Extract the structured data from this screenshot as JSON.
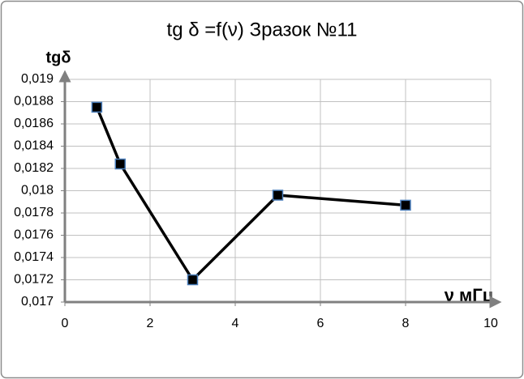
{
  "chart_data": {
    "type": "line",
    "title": "tg δ =f(ν)  Зразок №11",
    "y_label": "tgδ",
    "x_label": "ν мГц",
    "x": [
      0.75,
      1.3,
      3,
      5,
      8
    ],
    "series": [
      {
        "color": "#000000",
        "marker_edge_color": "#4a7ebb",
        "values": [
          0.01875,
          0.01824,
          0.0172,
          0.01796,
          0.01787
        ]
      }
    ],
    "xlim": [
      0,
      10
    ],
    "xticks": [
      0,
      2,
      4,
      6,
      8,
      10
    ],
    "ylim": [
      0.017,
      0.019
    ],
    "yticks": [
      {
        "value": 0.017,
        "label": "0,017"
      },
      {
        "value": 0.0172,
        "label": "0,0172"
      },
      {
        "value": 0.0174,
        "label": "0,0174"
      },
      {
        "value": 0.0176,
        "label": "0,0176"
      },
      {
        "value": 0.0178,
        "label": "0,0178"
      },
      {
        "value": 0.018,
        "label": "0,018"
      },
      {
        "value": 0.0182,
        "label": "0,0182"
      },
      {
        "value": 0.0184,
        "label": "0,0184"
      },
      {
        "value": 0.0186,
        "label": "0,0186"
      },
      {
        "value": 0.0188,
        "label": "0,0188"
      },
      {
        "value": 0.019,
        "label": "0,019"
      }
    ],
    "grid": true
  }
}
